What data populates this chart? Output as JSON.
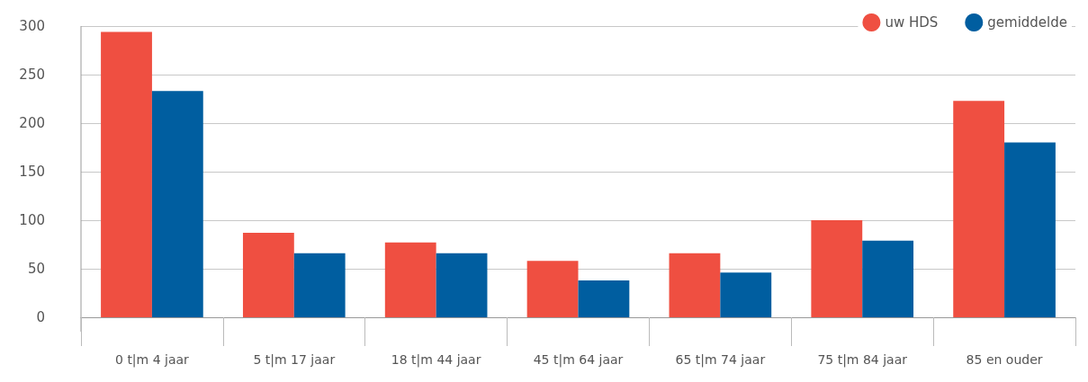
{
  "chart_data": {
    "type": "bar",
    "categories": [
      "0 t|m 4 jaar",
      "5 t|m 17 jaar",
      "18 t|m 44 jaar",
      "45 t|m 64 jaar",
      "65 t|m 74 jaar",
      "75 t|m 84 jaar",
      "85 en ouder"
    ],
    "series": [
      {
        "name": "uw HDS",
        "color": "#ef4f41",
        "values": [
          294,
          87,
          77,
          58,
          66,
          100,
          223
        ]
      },
      {
        "name": "gemiddelde",
        "color": "#005ea0",
        "values": [
          233,
          66,
          66,
          38,
          46,
          79,
          180
        ]
      }
    ],
    "ylim": [
      0,
      300
    ],
    "yticks": [
      0,
      50,
      100,
      150,
      200,
      250,
      300
    ],
    "grid": "y",
    "legend": "top right"
  }
}
